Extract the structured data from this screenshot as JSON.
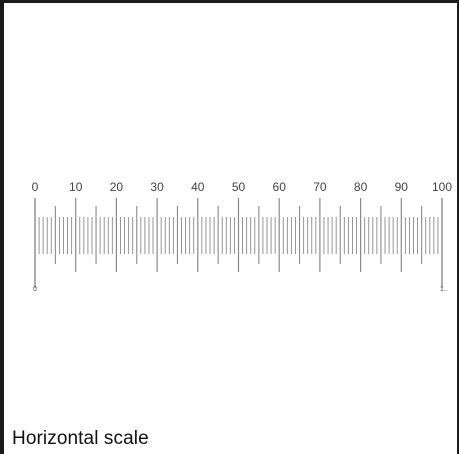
{
  "scale": {
    "min": 0,
    "max": 100,
    "major_step": 10,
    "minor_step": 1,
    "labels": [
      "0",
      "10",
      "20",
      "30",
      "40",
      "50",
      "60",
      "70",
      "80",
      "90",
      "100"
    ],
    "start_mark": "0",
    "end_mark": "1..",
    "tick_color": "#8a8a8a",
    "label_color": "#444444"
  },
  "caption": "Horizontal scale"
}
